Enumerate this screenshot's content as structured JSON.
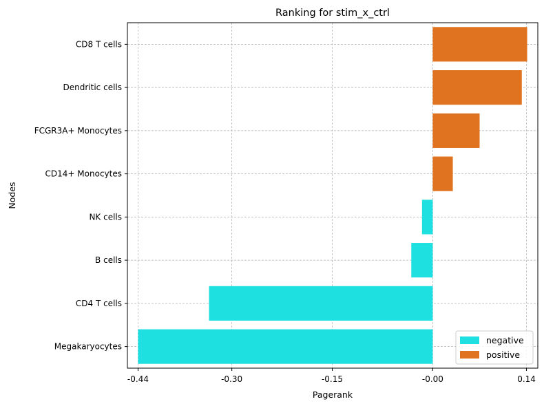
{
  "chart_data": {
    "type": "bar",
    "orientation": "horizontal",
    "title": "Ranking for stim_x_ctrl",
    "xlabel": "Pagerank",
    "ylabel": "Nodes",
    "categories": [
      "CD8 T cells",
      "Dendritic cells",
      "FCGR3A+ Monocytes",
      "CD14+ Monocytes",
      "NK cells",
      "B cells",
      "CD4 T cells",
      "Megakaryocytes"
    ],
    "values": [
      0.141,
      0.133,
      0.07,
      0.03,
      -0.016,
      -0.032,
      -0.334,
      -0.44
    ],
    "xticks": [
      -0.44,
      -0.3,
      -0.15,
      -0.0,
      0.14
    ],
    "xtick_labels": [
      "-0.44",
      "-0.30",
      "-0.15",
      "-0.00",
      "0.14"
    ],
    "xlim": [
      -0.4559,
      0.1569
    ],
    "grid": true,
    "legend": {
      "position": "bottom-right",
      "entries": [
        {
          "name": "negative",
          "color": "#1FE0E0"
        },
        {
          "name": "positive",
          "color": "#E07320"
        }
      ]
    },
    "colors": {
      "negative": "#1FE0E0",
      "positive": "#E07320"
    }
  }
}
